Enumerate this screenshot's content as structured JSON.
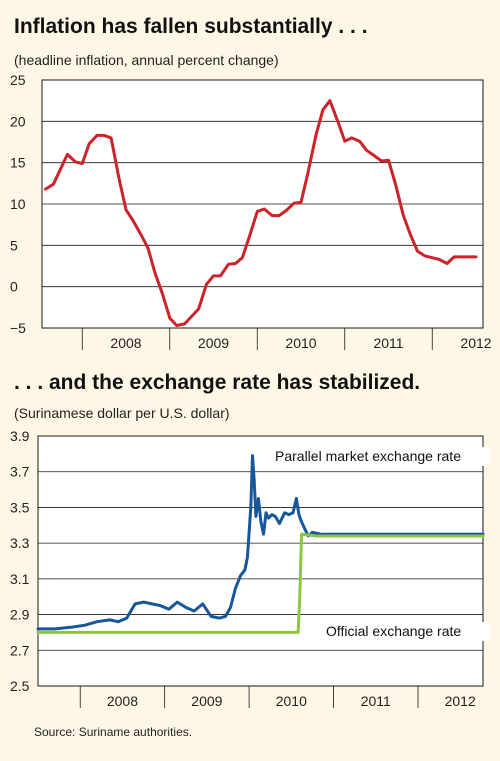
{
  "chart_data": [
    {
      "type": "line",
      "title": "Inflation has fallen substantially . . .",
      "subtitle": "(headline inflation, annual percent change)",
      "xlabel": "",
      "ylabel": "",
      "ylim": [
        -5,
        25
      ],
      "yticks": [
        "25",
        "20",
        "15",
        "10",
        "5",
        "0",
        "−5"
      ],
      "ytick_values": [
        25,
        20,
        15,
        10,
        5,
        0,
        -5
      ],
      "xlim": [
        2007.54,
        2012.58
      ],
      "xtick_labels": [
        "2008",
        "2009",
        "2010",
        "2011",
        "2012"
      ],
      "xtick_positions": [
        2008.0,
        2009.0,
        2010.0,
        2011.0,
        2012.0
      ],
      "grid": "horizontal",
      "series": [
        {
          "color": "#cc2229",
          "x": [
            2007.58,
            2007.67,
            2007.75,
            2007.83,
            2007.92,
            2008.0,
            2008.08,
            2008.17,
            2008.25,
            2008.33,
            2008.42,
            2008.5,
            2008.58,
            2008.67,
            2008.75,
            2008.83,
            2008.92,
            2009.0,
            2009.08,
            2009.17,
            2009.25,
            2009.33,
            2009.42,
            2009.5,
            2009.58,
            2009.67,
            2009.75,
            2009.83,
            2009.92,
            2010.0,
            2010.08,
            2010.17,
            2010.25,
            2010.33,
            2010.42,
            2010.5,
            2010.58,
            2010.67,
            2010.75,
            2010.83,
            2010.92,
            2011.0,
            2011.08,
            2011.17,
            2011.25,
            2011.33,
            2011.42,
            2011.5,
            2011.58,
            2011.67,
            2011.75,
            2011.83,
            2011.92,
            2012.0,
            2012.08,
            2012.17,
            2012.25,
            2012.33,
            2012.42,
            2012.5
          ],
          "y": [
            11.8,
            12.4,
            14.2,
            16.0,
            15.1,
            14.9,
            17.3,
            18.3,
            18.3,
            18.0,
            13.1,
            9.3,
            8.0,
            6.3,
            4.7,
            1.7,
            -1.0,
            -3.8,
            -4.7,
            -4.5,
            -3.6,
            -2.7,
            0.3,
            1.3,
            1.3,
            2.7,
            2.8,
            3.5,
            6.4,
            9.1,
            9.4,
            8.6,
            8.6,
            9.2,
            10.1,
            10.2,
            13.8,
            18.3,
            21.4,
            22.5,
            20.0,
            17.6,
            18.0,
            17.6,
            16.5,
            15.9,
            15.2,
            15.3,
            12.4,
            8.6,
            6.3,
            4.3,
            3.7,
            3.5,
            3.3,
            2.8,
            3.6,
            3.6,
            3.6,
            3.6
          ]
        }
      ]
    },
    {
      "type": "line",
      "title": ". . . and the exchange rate has stabilized.",
      "subtitle": "(Surinamese dollar per U.S. dollar)",
      "xlabel": "",
      "ylabel": "",
      "ylim": [
        2.5,
        3.9
      ],
      "yticks": [
        "3.9",
        "3.7",
        "3.5",
        "3.3",
        "3.1",
        "2.9",
        "2.7",
        "2.5"
      ],
      "ytick_values": [
        3.9,
        3.7,
        3.5,
        3.3,
        3.1,
        2.9,
        2.7,
        2.5
      ],
      "xlim": [
        2007.5,
        2012.77
      ],
      "xtick_labels": [
        "2008",
        "2009",
        "2010",
        "2011",
        "2012"
      ],
      "xtick_positions": [
        2008.0,
        2009.0,
        2010.0,
        2011.0,
        2012.0
      ],
      "grid": "horizontal",
      "series": [
        {
          "name": "Parallel market exchange rate",
          "color": "#17569b",
          "x": [
            2007.5,
            2007.7,
            2007.9,
            2008.05,
            2008.2,
            2008.35,
            2008.45,
            2008.55,
            2008.65,
            2008.75,
            2008.85,
            2008.95,
            2009.05,
            2009.15,
            2009.25,
            2009.35,
            2009.45,
            2009.55,
            2009.65,
            2009.72,
            2009.78,
            2009.84,
            2009.9,
            2009.95,
            2009.98,
            2010.02,
            2010.04,
            2010.06,
            2010.08,
            2010.11,
            2010.14,
            2010.17,
            2010.2,
            2010.23,
            2010.27,
            2010.31,
            2010.36,
            2010.42,
            2010.47,
            2010.52,
            2010.56,
            2010.59,
            2010.62,
            2010.66,
            2010.7,
            2010.75,
            2010.85,
            2011.0,
            2011.2,
            2011.4,
            2011.6,
            2011.8,
            2012.0,
            2012.2,
            2012.4,
            2012.77
          ],
          "y": [
            2.82,
            2.82,
            2.83,
            2.84,
            2.86,
            2.87,
            2.86,
            2.88,
            2.96,
            2.97,
            2.96,
            2.95,
            2.93,
            2.97,
            2.94,
            2.92,
            2.96,
            2.89,
            2.88,
            2.89,
            2.94,
            3.05,
            3.12,
            3.15,
            3.22,
            3.5,
            3.79,
            3.65,
            3.45,
            3.55,
            3.42,
            3.35,
            3.47,
            3.44,
            3.46,
            3.45,
            3.41,
            3.47,
            3.46,
            3.47,
            3.55,
            3.46,
            3.42,
            3.38,
            3.34,
            3.36,
            3.35,
            3.35,
            3.35,
            3.35,
            3.35,
            3.35,
            3.35,
            3.35,
            3.35,
            3.35
          ]
        },
        {
          "name": "Official exchange rate",
          "color": "#8cc63f",
          "x": [
            2007.5,
            2007.8,
            2008.0,
            2008.5,
            2009.0,
            2009.5,
            2010.0,
            2010.3,
            2010.58,
            2010.6,
            2010.62,
            2010.8,
            2011.0,
            2011.5,
            2012.0,
            2012.5,
            2012.77
          ],
          "y": [
            2.8,
            2.8,
            2.8,
            2.8,
            2.8,
            2.8,
            2.8,
            2.8,
            2.8,
            3.0,
            3.35,
            3.34,
            3.34,
            3.34,
            3.34,
            3.34,
            3.34
          ]
        }
      ]
    }
  ],
  "source": "Source: Suriname authorities."
}
